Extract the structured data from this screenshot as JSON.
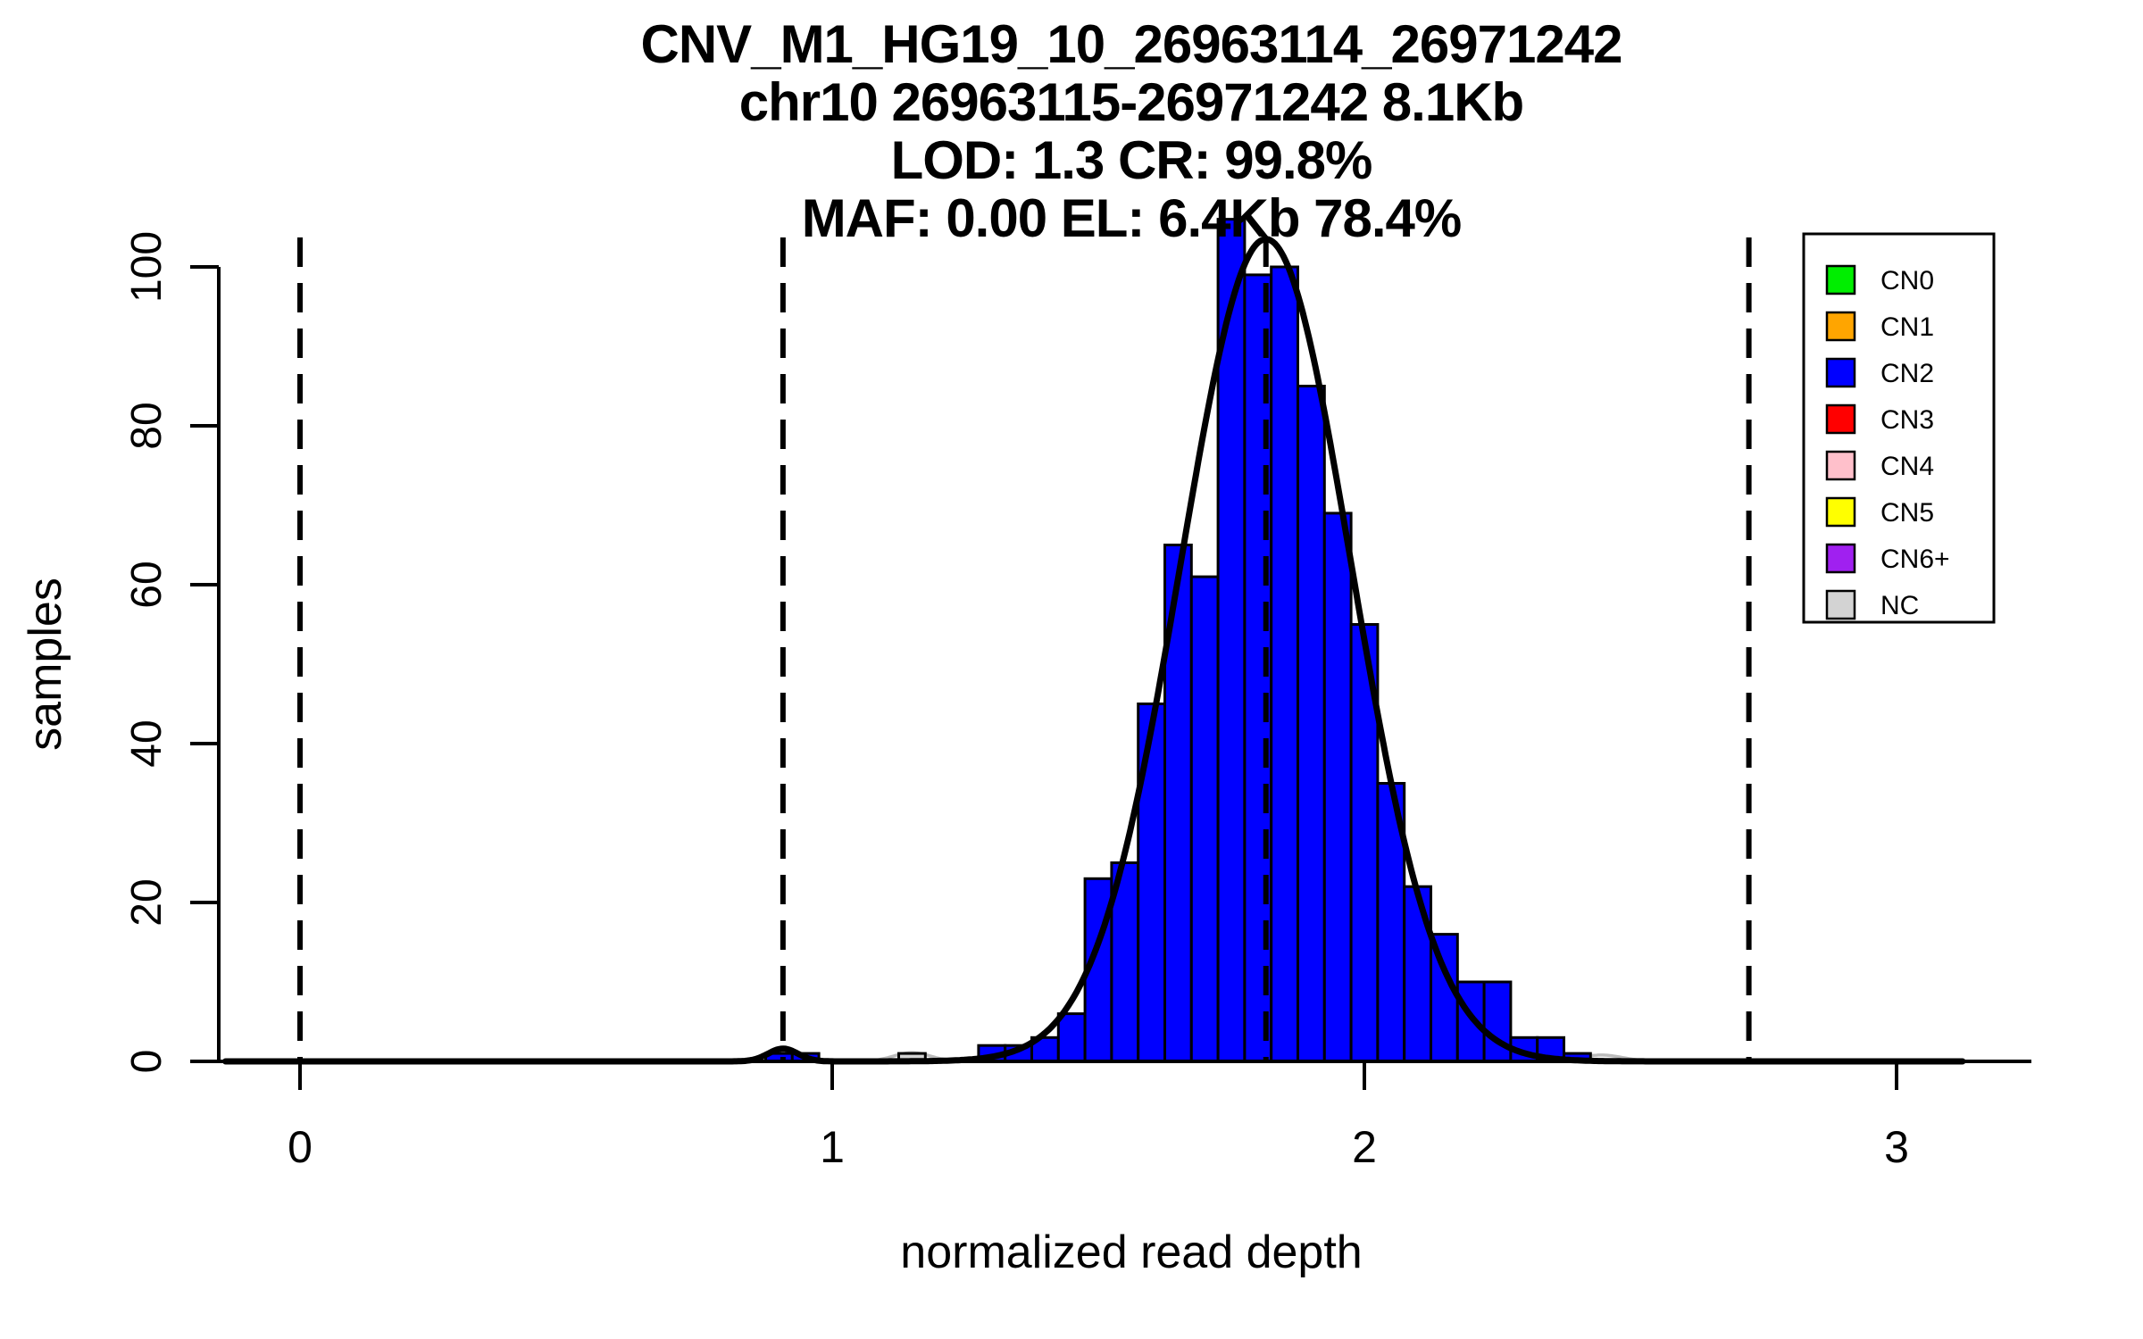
{
  "title": {
    "lines": [
      "CNV_M1_HG19_10_26963114_26971242",
      "chr10 26963115-26971242 8.1Kb",
      "LOD: 1.3 CR: 99.8%",
      "MAF: 0.00 EL: 6.4Kb 78.4%"
    ]
  },
  "header_stats": {
    "cnv_id": "CNV_M1_HG19_10_26963114_26971242",
    "region": "chr10 26963115-26971242",
    "region_size": "8.1Kb",
    "lod": "1.3",
    "cr": "99.8%",
    "maf": "0.00",
    "el": "6.4Kb",
    "el_pct": "78.4%"
  },
  "axes": {
    "x": {
      "label": "normalized read depth",
      "ticks": [
        0,
        1,
        2,
        3
      ]
    },
    "y": {
      "label": "samples",
      "ticks": [
        0,
        20,
        40,
        60,
        80,
        100
      ]
    }
  },
  "legend": {
    "items": [
      {
        "label": "CN0",
        "color": "#00EE00"
      },
      {
        "label": "CN1",
        "color": "#FFA500"
      },
      {
        "label": "CN2",
        "color": "#0000FF"
      },
      {
        "label": "CN3",
        "color": "#FF0000"
      },
      {
        "label": "CN4",
        "color": "#FFC0CB"
      },
      {
        "label": "CN5",
        "color": "#FFFF00"
      },
      {
        "label": "CN6+",
        "color": "#A020F0"
      },
      {
        "label": "NC",
        "color": "#D3D3D3"
      }
    ]
  },
  "chart_data": {
    "type": "bar",
    "subtype": "histogram_with_density",
    "title": "CNV_M1_HG19_10_26963114_26971242",
    "xlabel": "normalized read depth",
    "ylabel": "samples",
    "xlim": [
      -0.2,
      3.25
    ],
    "ylim": [
      0,
      106
    ],
    "grid": false,
    "legend_position": "top-right",
    "bin_width": 0.05,
    "bins": [
      [
        0.875,
        1,
        "CN2"
      ],
      [
        0.925,
        1,
        "CN2"
      ],
      [
        1.125,
        1,
        "NC"
      ],
      [
        1.275,
        2,
        "CN2"
      ],
      [
        1.325,
        2,
        "CN2"
      ],
      [
        1.375,
        3,
        "CN2"
      ],
      [
        1.425,
        6,
        "CN2"
      ],
      [
        1.475,
        23,
        "CN2"
      ],
      [
        1.525,
        25,
        "CN2"
      ],
      [
        1.575,
        45,
        "CN2"
      ],
      [
        1.625,
        65,
        "CN2"
      ],
      [
        1.675,
        61,
        "CN2"
      ],
      [
        1.725,
        106,
        "CN2"
      ],
      [
        1.775,
        99,
        "CN2"
      ],
      [
        1.825,
        100,
        "CN2"
      ],
      [
        1.875,
        85,
        "CN2"
      ],
      [
        1.925,
        69,
        "CN2"
      ],
      [
        1.975,
        55,
        "CN2"
      ],
      [
        2.025,
        35,
        "CN2"
      ],
      [
        2.075,
        22,
        "CN2"
      ],
      [
        2.125,
        16,
        "CN2"
      ],
      [
        2.175,
        10,
        "CN2"
      ],
      [
        2.225,
        10,
        "CN2"
      ],
      [
        2.275,
        3,
        "CN2"
      ],
      [
        2.325,
        3,
        "CN2"
      ],
      [
        2.375,
        1,
        "CN2"
      ]
    ],
    "bin_colors": {
      "CN2": "#0000FF",
      "NC": "#D3D3D3"
    },
    "density_curves": [
      {
        "name": "nc-density-curve",
        "color": "#BBBBBB",
        "width": 3.5,
        "range": [
          1.0,
          2.6
        ],
        "components": [
          {
            "amp": 1.1,
            "mu": 1.15,
            "sigma": 0.035
          },
          {
            "amp": 0.8,
            "mu": 2.445,
            "sigma": 0.04
          }
        ]
      },
      {
        "name": "fitted-density-curve",
        "color": "#000000",
        "width": 7,
        "range": [
          -0.14,
          3.127
        ],
        "components": [
          {
            "amp": 103.5,
            "mu": 1.815,
            "sigma": 0.16
          },
          {
            "amp": 1.6,
            "mu": 0.9075,
            "sigma": 0.028
          }
        ]
      }
    ],
    "vlines": {
      "values": [
        0,
        0.9075,
        1.815,
        2.7225
      ],
      "style": "dashed",
      "color": "#000000"
    }
  }
}
